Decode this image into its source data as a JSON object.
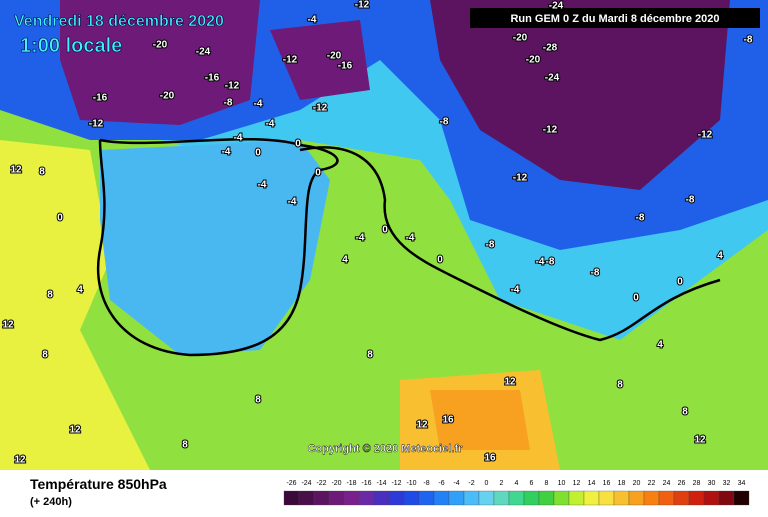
{
  "header": {
    "date": "Vendredi 18 décembre 2020",
    "time": "1:00 locale",
    "run": "Run GEM 0 Z du Mardi 8 décembre 2020",
    "copyright": "Copyright © 2020 Meteociel.fr"
  },
  "footer": {
    "title": "Température 850hPa",
    "lead": "(+ 240h)"
  },
  "legend": {
    "ticks": [
      -26,
      -24,
      -22,
      -20,
      -18,
      -16,
      -14,
      -12,
      -10,
      -8,
      -6,
      -4,
      -2,
      0,
      2,
      4,
      6,
      8,
      10,
      12,
      14,
      16,
      18,
      20,
      22,
      24,
      26,
      28,
      30,
      32,
      34
    ],
    "colors": [
      "#3b0a3b",
      "#4a0f4a",
      "#5c1460",
      "#6e1a78",
      "#7a1f8e",
      "#6a2aa8",
      "#4a2ec0",
      "#2e3ad8",
      "#1e4ae8",
      "#1e64f0",
      "#2282f5",
      "#30a0f8",
      "#4abcf8",
      "#66d2f0",
      "#60d8c0",
      "#40d890",
      "#30d060",
      "#40d040",
      "#80e030",
      "#c0f030",
      "#f0f040",
      "#f8e040",
      "#f8c030",
      "#f8a020",
      "#f88010",
      "#f06010",
      "#e04010",
      "#d02010",
      "#b01010",
      "#800810",
      "#200000"
    ]
  },
  "map_labels": [
    "-20",
    "-24",
    "-16",
    "-12",
    "-16",
    "-20",
    "-12",
    "-8",
    "-4",
    "-12",
    "-4",
    "-20",
    "-16",
    "-12",
    "-12",
    "-4",
    "-4",
    "0",
    "0",
    "-4",
    "-4",
    "-4",
    "0",
    "-8",
    "-24",
    "-20",
    "-28",
    "-20",
    "-24",
    "-12",
    "-12",
    "-8",
    "-8",
    "-8",
    "-12",
    "-8",
    "-8",
    "-8",
    "-4",
    "-4",
    "0",
    "0",
    "4",
    "4",
    "0",
    "-4",
    "0",
    "-4",
    "4",
    "12",
    "8",
    "0",
    "4",
    "8",
    "12",
    "8",
    "12",
    "12",
    "8",
    "8",
    "8",
    "12",
    "16",
    "16",
    "12",
    "8",
    "8",
    "12"
  ]
}
